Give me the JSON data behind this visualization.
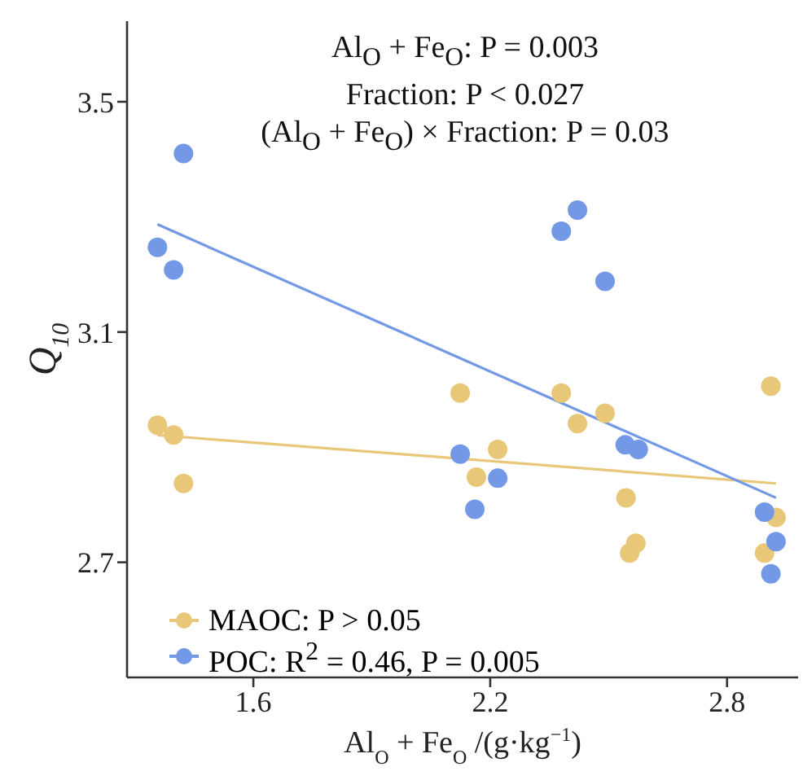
{
  "chart_data": {
    "type": "scatter",
    "xlabel": "Al$_{O}$ + Fe$_{O}$ /(g·kg$^{−1}$)",
    "ylabel": "Q$_{10}$",
    "annotations": [
      "Al$_{O}$ + Fe$_{O}$: P = 0.003",
      "Fraction: P < 0.027",
      "(Al$_{O}$ + Fe$_{O}$) × Fraction: P = 0.03"
    ],
    "xlim": [
      1.28,
      2.98
    ],
    "xticks": [
      1.6,
      2.2,
      2.8
    ],
    "ylim": [
      2.5,
      3.64
    ],
    "yticks": [
      2.7,
      3.1,
      3.5
    ],
    "grid": false,
    "legend": "bottom left",
    "marker": "circle",
    "series": [
      {
        "name": "MAOC: P > 0.05",
        "color": "#e8c878",
        "x": [
          1.357,
          1.398,
          1.423,
          2.124,
          2.165,
          2.219,
          2.38,
          2.421,
          2.491,
          2.544,
          2.553,
          2.569,
          2.911,
          2.924,
          2.895
        ],
        "values": [
          2.938,
          2.921,
          2.837,
          2.994,
          2.848,
          2.896,
          2.994,
          2.941,
          2.959,
          2.812,
          2.716,
          2.733,
          3.006,
          2.778,
          2.716
        ]
      },
      {
        "name": "POC: R$^{2}$ = 0.46, P = 0.005",
        "color": "#7398e6",
        "x": [
          1.423,
          1.357,
          1.398,
          2.124,
          2.161,
          2.219,
          2.38,
          2.421,
          2.491,
          2.542,
          2.575,
          2.895,
          2.924,
          2.911
        ],
        "values": [
          3.41,
          3.247,
          3.208,
          2.888,
          2.792,
          2.846,
          3.275,
          3.312,
          3.188,
          2.904,
          2.896,
          2.787,
          2.736,
          2.68
        ]
      },
      {
        "color": "#e8c878",
        "type": "line",
        "marker": "none",
        "x": [
          1.357,
          2.924
        ],
        "values": [
          2.921,
          2.837
        ]
      },
      {
        "color": "#7398e6",
        "type": "line",
        "marker": "none",
        "x": [
          1.357,
          2.924
        ],
        "values": [
          3.287,
          2.812
        ]
      }
    ]
  }
}
